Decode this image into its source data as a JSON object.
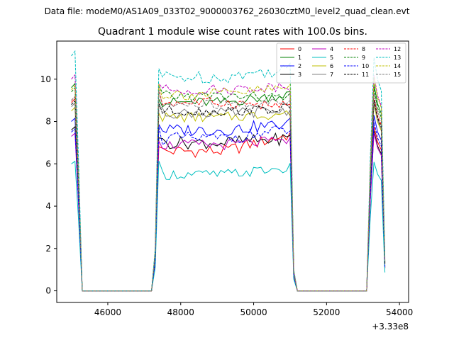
{
  "suptitle": "Data file: modeM0/AS1A09_033T02_9000003762_26030cztM0_level2_quad_clean.evt",
  "chart_data": {
    "type": "line",
    "title": "Quadrant 1 module wise count rates with 100.0s bins.",
    "xlabel": "",
    "ylabel": "",
    "x_offset_label": "+3.33e8",
    "xlim": [
      44600,
      54250
    ],
    "ylim": [
      -0.55,
      11.8
    ],
    "xticks": [
      46000,
      48000,
      50000,
      52000,
      54000
    ],
    "xtick_labels": [
      "46000",
      "48000",
      "50000",
      "52000",
      "54000"
    ],
    "yticks": [
      0,
      2,
      4,
      6,
      8,
      10
    ],
    "ytick_labels": [
      "0",
      "2",
      "4",
      "6",
      "8",
      "10"
    ],
    "grid": false,
    "legend_position": "top-right",
    "legend_columns": 4,
    "segments": [
      {
        "start": 45000,
        "end": 45300
      },
      {
        "start": 47300,
        "end": 51100
      },
      {
        "start": 53200,
        "end": 53600
      }
    ],
    "series": [
      {
        "name": "0",
        "color": "#ff0000",
        "dash": false,
        "level": 6.6,
        "amp": 0.3,
        "start": 8.9,
        "late": 7.4
      },
      {
        "name": "1",
        "color": "#008000",
        "dash": false,
        "level": 8.9,
        "amp": 0.25,
        "start": 9.6,
        "late": 9.3
      },
      {
        "name": "2",
        "color": "#0000ff",
        "dash": false,
        "level": 7.6,
        "amp": 0.3,
        "start": 8.0,
        "late": 7.9
      },
      {
        "name": "3",
        "color": "#000000",
        "dash": false,
        "level": 7.0,
        "amp": 0.3,
        "start": 7.6,
        "late": 7.2
      },
      {
        "name": "4",
        "color": "#bf00bf",
        "dash": false,
        "level": 6.9,
        "amp": 0.25,
        "start": 7.3,
        "late": 7.1
      },
      {
        "name": "5",
        "color": "#00bfbf",
        "dash": false,
        "level": 5.5,
        "amp": 0.25,
        "start": 6.0,
        "late": 5.8
      },
      {
        "name": "6",
        "color": "#bfbf00",
        "dash": false,
        "level": 8.2,
        "amp": 0.25,
        "start": 8.5,
        "late": 8.4
      },
      {
        "name": "7",
        "color": "#808080",
        "dash": false,
        "level": 8.4,
        "amp": 0.25,
        "start": 8.7,
        "late": 8.5
      },
      {
        "name": "8",
        "color": "#ff0000",
        "dash": true,
        "level": 8.9,
        "amp": 0.25,
        "start": 9.0,
        "late": 8.7
      },
      {
        "name": "9",
        "color": "#008000",
        "dash": true,
        "level": 9.2,
        "amp": 0.25,
        "start": 9.4,
        "late": 9.1
      },
      {
        "name": "10",
        "color": "#0000ff",
        "dash": true,
        "level": 7.2,
        "amp": 0.3,
        "start": 7.5,
        "late": 7.6
      },
      {
        "name": "11",
        "color": "#000000",
        "dash": true,
        "level": 8.5,
        "amp": 0.25,
        "start": 8.8,
        "late": 8.6
      },
      {
        "name": "12",
        "color": "#bf00bf",
        "dash": true,
        "level": 9.5,
        "amp": 0.25,
        "start": 10.0,
        "late": 9.7
      },
      {
        "name": "13",
        "color": "#00bfbf",
        "dash": true,
        "level": 10.1,
        "amp": 0.3,
        "start": 11.1,
        "late": 10.5
      },
      {
        "name": "14",
        "color": "#bfbf00",
        "dash": true,
        "level": 9.3,
        "amp": 0.3,
        "start": 9.5,
        "late": 9.6
      },
      {
        "name": "15",
        "color": "#808080",
        "dash": true,
        "level": 8.8,
        "amp": 0.25,
        "start": 9.0,
        "late": 8.9
      }
    ]
  }
}
